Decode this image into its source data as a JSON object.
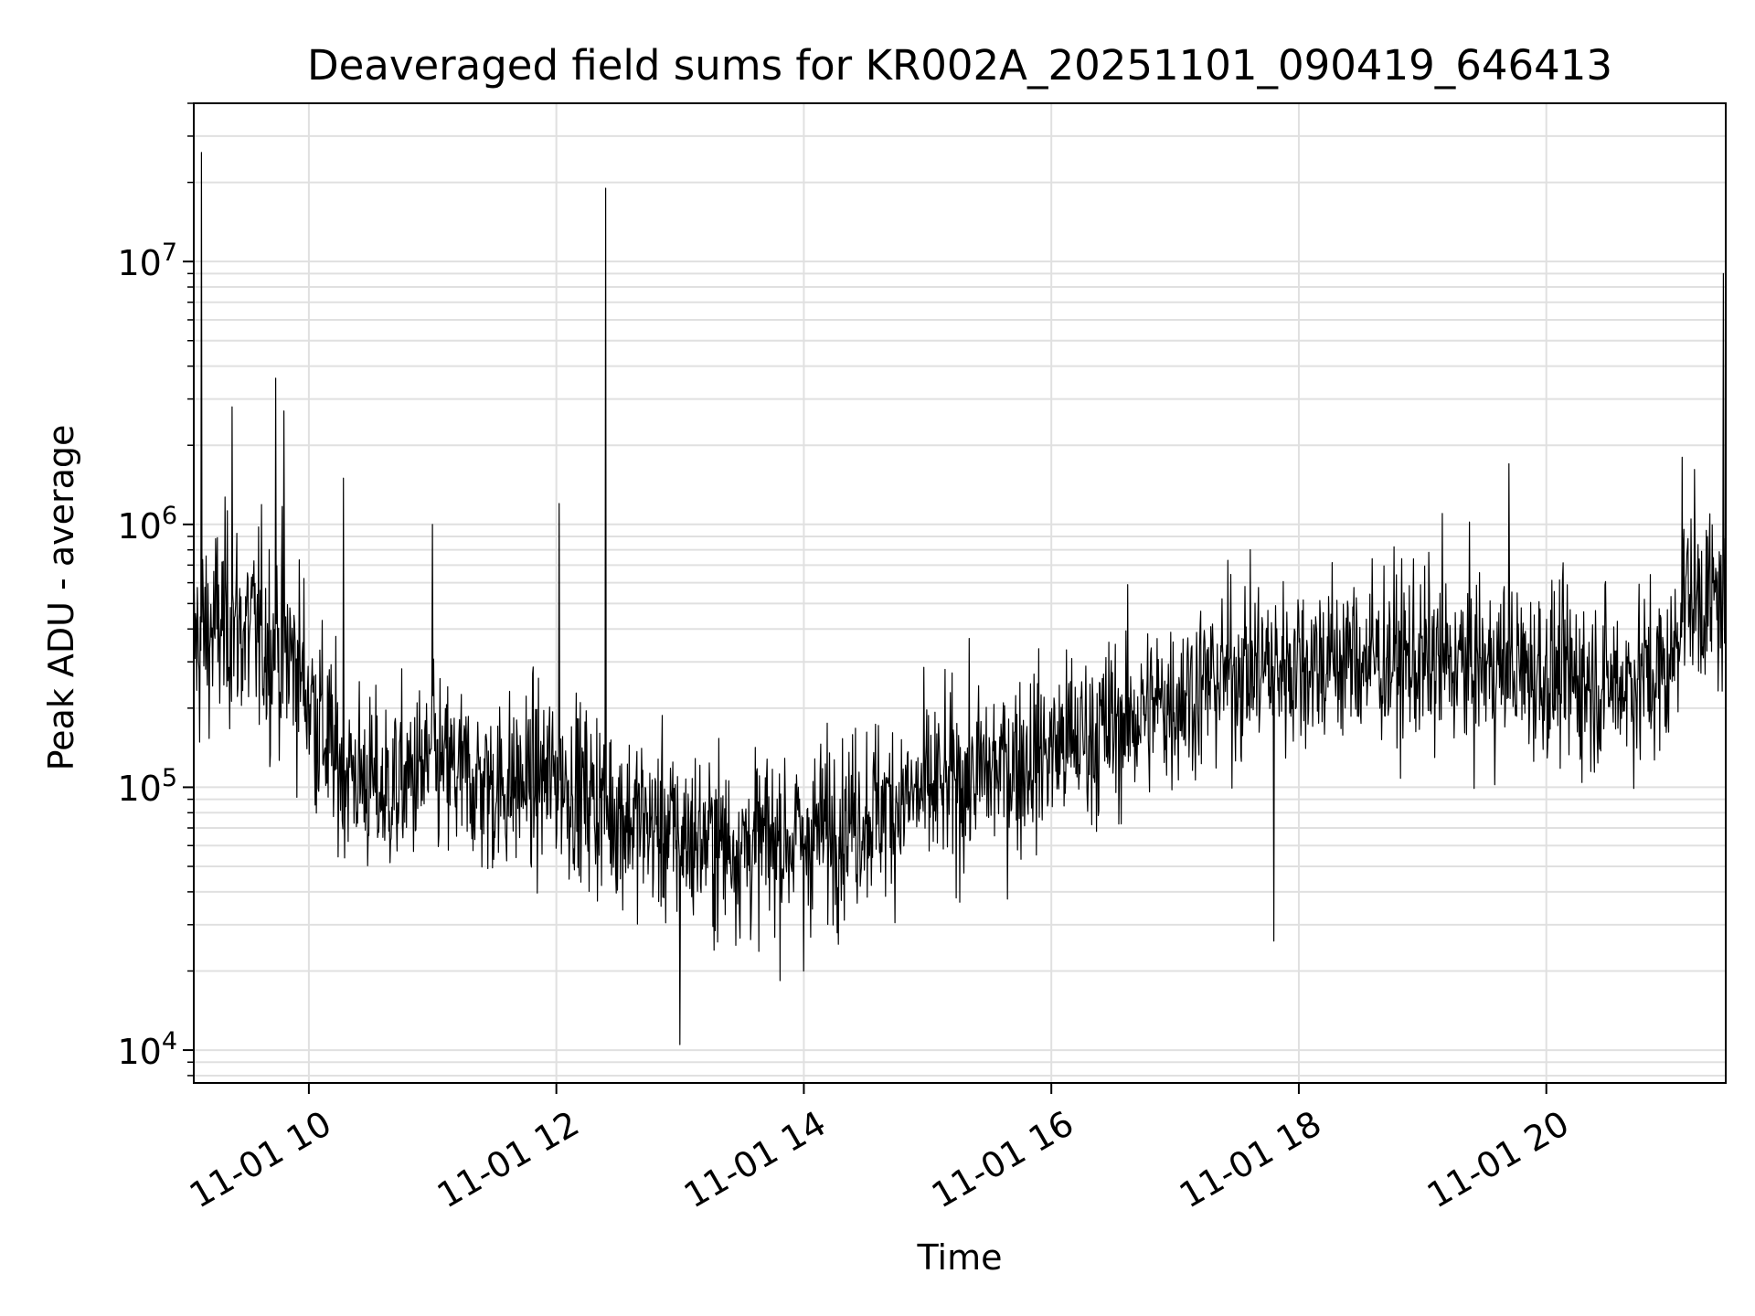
{
  "chart_data": {
    "type": "line",
    "title": "Deaveraged field sums for KR002A_20251101_090419_646413",
    "xlabel": "Time",
    "ylabel": "Peak ADU - average",
    "yscale": "log",
    "ylim": [
      7500,
      40000000
    ],
    "xlim_hours": [
      9.07,
      21.45
    ],
    "grid": true,
    "line_color": "#000000",
    "grid_color": "#e0e0e0",
    "x_ticks": [
      {
        "hour": 10,
        "label": "11-01 10"
      },
      {
        "hour": 12,
        "label": "11-01 12"
      },
      {
        "hour": 14,
        "label": "11-01 14"
      },
      {
        "hour": 16,
        "label": "11-01 16"
      },
      {
        "hour": 18,
        "label": "11-01 18"
      },
      {
        "hour": 20,
        "label": "11-01 20"
      }
    ],
    "y_ticks": [
      {
        "value": 10000,
        "base": "10",
        "exp": "4"
      },
      {
        "value": 100000,
        "base": "10",
        "exp": "5"
      },
      {
        "value": 1000000,
        "base": "10",
        "exp": "6"
      },
      {
        "value": 10000000,
        "base": "10",
        "exp": "7"
      }
    ],
    "series": [
      {
        "name": "Peak ADU - average",
        "trend": [
          {
            "hour": 9.07,
            "value": 350000
          },
          {
            "hour": 9.3,
            "value": 420000
          },
          {
            "hour": 9.6,
            "value": 380000
          },
          {
            "hour": 9.9,
            "value": 300000
          },
          {
            "hour": 10.2,
            "value": 130000
          },
          {
            "hour": 10.6,
            "value": 95000
          },
          {
            "hour": 11.0,
            "value": 120000
          },
          {
            "hour": 11.5,
            "value": 100000
          },
          {
            "hour": 12.0,
            "value": 110000
          },
          {
            "hour": 12.5,
            "value": 80000
          },
          {
            "hour": 13.0,
            "value": 65000
          },
          {
            "hour": 13.5,
            "value": 60000
          },
          {
            "hour": 14.0,
            "value": 65000
          },
          {
            "hour": 14.5,
            "value": 80000
          },
          {
            "hour": 15.0,
            "value": 95000
          },
          {
            "hour": 15.5,
            "value": 115000
          },
          {
            "hour": 16.0,
            "value": 140000
          },
          {
            "hour": 16.5,
            "value": 170000
          },
          {
            "hour": 17.0,
            "value": 220000
          },
          {
            "hour": 17.5,
            "value": 280000
          },
          {
            "hour": 18.0,
            "value": 300000
          },
          {
            "hour": 18.5,
            "value": 310000
          },
          {
            "hour": 19.0,
            "value": 300000
          },
          {
            "hour": 19.5,
            "value": 290000
          },
          {
            "hour": 20.0,
            "value": 270000
          },
          {
            "hour": 20.5,
            "value": 250000
          },
          {
            "hour": 21.0,
            "value": 270000
          },
          {
            "hour": 21.1,
            "value": 550000
          },
          {
            "hour": 21.45,
            "value": 500000
          }
        ],
        "spikes": [
          {
            "hour": 9.13,
            "value": 26000000
          },
          {
            "hour": 9.38,
            "value": 2800000
          },
          {
            "hour": 9.73,
            "value": 3600000
          },
          {
            "hour": 9.8,
            "value": 2700000
          },
          {
            "hour": 10.28,
            "value": 1500000
          },
          {
            "hour": 11.0,
            "value": 1000000
          },
          {
            "hour": 12.02,
            "value": 1200000
          },
          {
            "hour": 12.4,
            "value": 19000000
          },
          {
            "hour": 13.0,
            "value": 10500
          },
          {
            "hour": 14.0,
            "value": 20000
          },
          {
            "hour": 17.8,
            "value": 26000
          },
          {
            "hour": 19.16,
            "value": 1100000
          },
          {
            "hour": 19.7,
            "value": 1700000
          },
          {
            "hour": 21.1,
            "value": 1800000
          },
          {
            "hour": 21.43,
            "value": 9000000
          }
        ]
      }
    ]
  }
}
